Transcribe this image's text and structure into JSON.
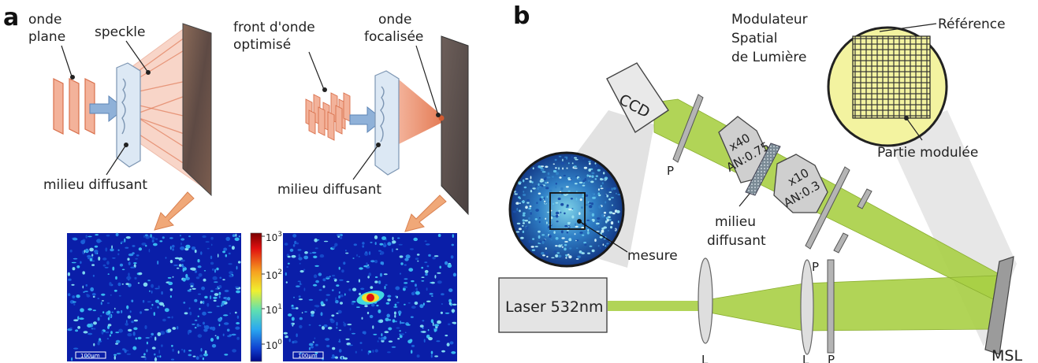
{
  "panel_a": {
    "letter": "a",
    "left_scheme": {
      "plane_wave_line1": "onde",
      "plane_wave_line2": "plane",
      "speckle": "speckle",
      "medium": "milieu diffusant"
    },
    "right_scheme": {
      "wavefront_line1": "front d'onde",
      "wavefront_line2": "optimisé",
      "focused_line1": "onde",
      "focused_line2": "focalisée",
      "medium": "milieu diffusant"
    },
    "colorbar": {
      "ticks": [
        {
          "base": "10",
          "exp": "3"
        },
        {
          "base": "10",
          "exp": "2"
        },
        {
          "base": "10",
          "exp": "1"
        },
        {
          "base": "10",
          "exp": "0"
        }
      ]
    },
    "scalebar_left": "100µm",
    "scalebar_right": "100µm"
  },
  "panel_b": {
    "letter": "b",
    "slm_line1": "Modulateur",
    "slm_line2": "Spatial",
    "slm_line3": "de Lumière",
    "reference": "Référence",
    "modulated_part": "Partie modulée",
    "ccd": "CCD",
    "objective1_mag": "x40",
    "objective1_na": "AN:0.75",
    "objective2_mag": "x10",
    "objective2_na": "AN:0.3",
    "medium_line1": "milieu",
    "medium_line2": "diffusant",
    "measurement": "mesure",
    "laser": "Laser 532nm",
    "polarizer": "P",
    "lens": "L",
    "msl": "MSL"
  },
  "colors": {
    "beam_green": "#a8cf45",
    "pink_beam": "#f3b29a",
    "arrow_blue": "#8fb1d8",
    "arrow_orange": "#f0a878",
    "map_blue": "#0a1ea8"
  }
}
